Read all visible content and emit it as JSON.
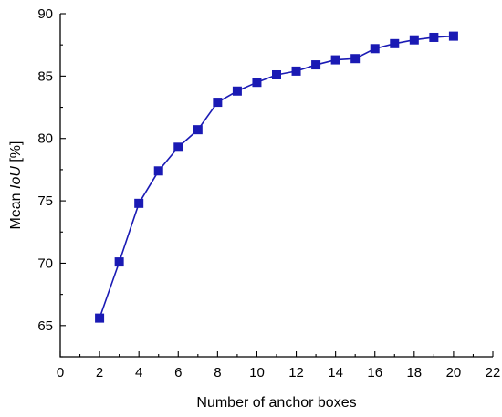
{
  "chart_data": {
    "type": "line",
    "title": "",
    "xlabel": "Number of anchor boxes",
    "ylabel": "Mean IoU [%]",
    "ylabel_parts": {
      "before": "Mean ",
      "italic": "IoU",
      "after": " [%]"
    },
    "xlim": [
      0,
      22
    ],
    "ylim": [
      62.5,
      90
    ],
    "x_ticks": [
      0,
      2,
      4,
      6,
      8,
      10,
      12,
      14,
      16,
      18,
      20,
      22
    ],
    "y_ticks": [
      65,
      70,
      75,
      80,
      85,
      90
    ],
    "grid": false,
    "legend": "none",
    "series": [
      {
        "color": "#1a1ab4",
        "marker": "square",
        "x": [
          2,
          3,
          4,
          5,
          6,
          7,
          8,
          9,
          10,
          11,
          12,
          13,
          14,
          15,
          16,
          17,
          18,
          19,
          20
        ],
        "y": [
          65.6,
          70.1,
          74.8,
          77.4,
          79.3,
          80.7,
          82.9,
          83.8,
          84.5,
          85.1,
          85.4,
          85.9,
          86.3,
          86.4,
          87.2,
          87.6,
          87.9,
          88.1,
          88.2
        ]
      }
    ]
  }
}
